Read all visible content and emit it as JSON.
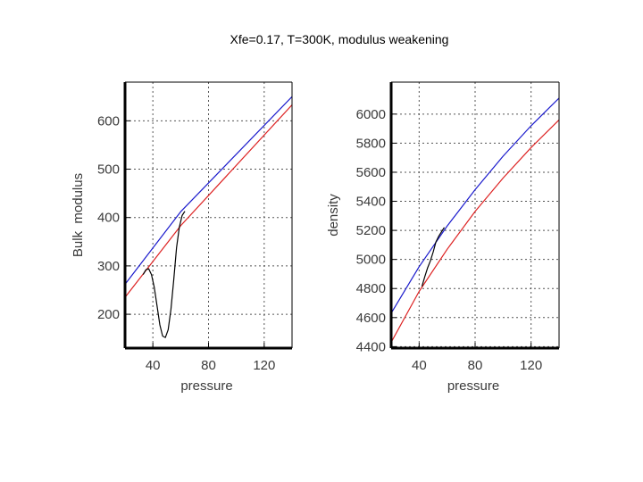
{
  "title": "Xfe=0.17, T=300K, modulus weakening",
  "colors": {
    "blue": "#1a1acc",
    "red": "#dd2222",
    "black": "#000000",
    "grid": "#555555"
  },
  "chart_data": [
    {
      "type": "line",
      "xlabel": "pressure",
      "ylabel": "Bulk  modulus",
      "xlim": [
        20,
        140
      ],
      "ylim": [
        130,
        680
      ],
      "xticks": [
        40,
        80,
        120
      ],
      "yticks": [
        200,
        300,
        400,
        500,
        600
      ],
      "grid": true,
      "series": [
        {
          "color": "blue",
          "x": [
            20,
            60,
            140
          ],
          "y": [
            262,
            412,
            650
          ]
        },
        {
          "color": "red",
          "x": [
            20,
            60,
            140
          ],
          "y": [
            235,
            383,
            633
          ]
        },
        {
          "color": "black",
          "x": [
            33,
            35,
            37,
            39,
            41,
            43,
            45,
            47,
            49,
            51,
            53,
            55,
            57,
            59,
            61,
            63
          ],
          "y": [
            282,
            292,
            294,
            282,
            256,
            218,
            178,
            155,
            152,
            168,
            210,
            270,
            338,
            380,
            404,
            413
          ]
        }
      ]
    },
    {
      "type": "line",
      "xlabel": "pressure",
      "ylabel": "density",
      "xlim": [
        20,
        140
      ],
      "ylim": [
        4390,
        6220
      ],
      "xticks": [
        40,
        80,
        120
      ],
      "yticks": [
        4400,
        4600,
        4800,
        5000,
        5200,
        5400,
        5600,
        5800,
        6000
      ],
      "ytick_labels": [
        "4400",
        "4600",
        "4800",
        "5000",
        "5200",
        "5400",
        "5600",
        "5800",
        "6000"
      ],
      "grid": true,
      "series": [
        {
          "color": "blue",
          "x": [
            20,
            40,
            60,
            80,
            100,
            120,
            140
          ],
          "y": [
            4630,
            4950,
            5230,
            5480,
            5710,
            5920,
            6110
          ]
        },
        {
          "color": "red",
          "x": [
            20,
            40,
            60,
            80,
            100,
            120,
            140
          ],
          "y": [
            4430,
            4780,
            5070,
            5330,
            5560,
            5770,
            5960
          ]
        },
        {
          "color": "black",
          "x": [
            42,
            44,
            46,
            48,
            50,
            52,
            54,
            56,
            58
          ],
          "y": [
            4815,
            4880,
            4940,
            4990,
            5050,
            5120,
            5160,
            5190,
            5220
          ]
        }
      ]
    }
  ]
}
